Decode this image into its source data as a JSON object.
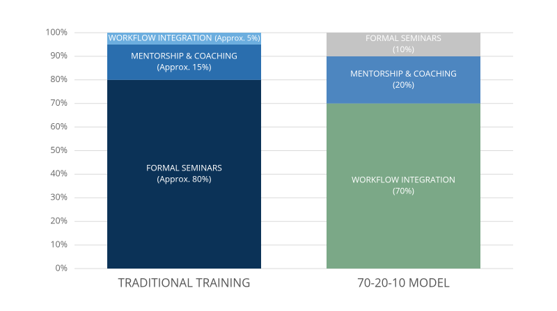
{
  "chart_data": {
    "type": "stacked_bar",
    "ylim": [
      0,
      100
    ],
    "yticks": [
      {
        "value": 0,
        "label": "0%"
      },
      {
        "value": 10,
        "label": "10%"
      },
      {
        "value": 20,
        "label": "20%"
      },
      {
        "value": 30,
        "label": "30%"
      },
      {
        "value": 40,
        "label": "40%"
      },
      {
        "value": 50,
        "label": "50%"
      },
      {
        "value": 60,
        "label": "60%"
      },
      {
        "value": 70,
        "label": "70%"
      },
      {
        "value": 80,
        "label": "80%"
      },
      {
        "value": 90,
        "label": "90%"
      },
      {
        "value": 100,
        "label": "100%"
      }
    ],
    "grid": true,
    "bars": [
      {
        "category": "TRADITIONAL TRAINING",
        "segments": [
          {
            "name": "FORMAL SEMINARS",
            "value": 80,
            "value_label": "(Approx. 80%)",
            "color": "#0b3257"
          },
          {
            "name": "MENTORSHIP & COACHING",
            "value": 15,
            "value_label": "(Approx. 15%)",
            "color": "#2a6eae"
          },
          {
            "name": "WORKFLOW INTEGRATION",
            "value": 5,
            "value_label": "(Approx. 5%)",
            "color": "#6caedf"
          }
        ]
      },
      {
        "category": "70-20-10 MODEL",
        "segments": [
          {
            "name": "WORKFLOW INTEGRATION",
            "value": 70,
            "value_label": "(70%)",
            "color": "#7ba887"
          },
          {
            "name": "MENTORSHIP & COACHING",
            "value": 20,
            "value_label": "(20%)",
            "color": "#4d86c0"
          },
          {
            "name": "FORMAL SEMINARS",
            "value": 10,
            "value_label": "(10%)",
            "color": "#c4c4c4"
          }
        ]
      }
    ]
  }
}
